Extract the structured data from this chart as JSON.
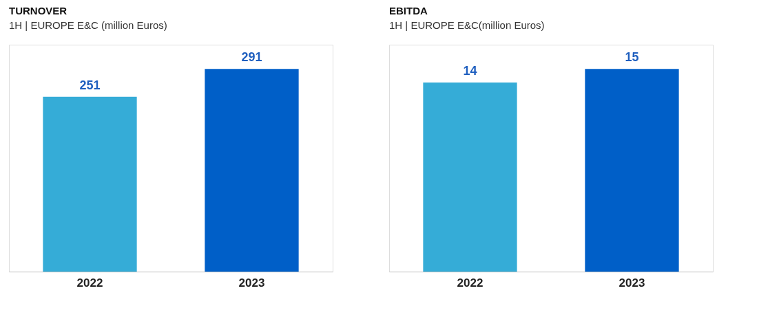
{
  "chart_data": [
    {
      "type": "bar",
      "title": "TURNOVER",
      "subtitle": "1H | EUROPE E&C (million Euros)",
      "categories": [
        "2022",
        "2023"
      ],
      "values": [
        251,
        291
      ],
      "colors": [
        "#35acd7",
        "#005fc8"
      ],
      "data_labels": true
    },
    {
      "type": "bar",
      "title": "EBITDA",
      "subtitle": "1H | EUROPE E&C(million Euros)",
      "categories": [
        "2022",
        "2023"
      ],
      "values": [
        14,
        15
      ],
      "colors": [
        "#35acd7",
        "#005fc8"
      ],
      "data_labels": true
    }
  ]
}
